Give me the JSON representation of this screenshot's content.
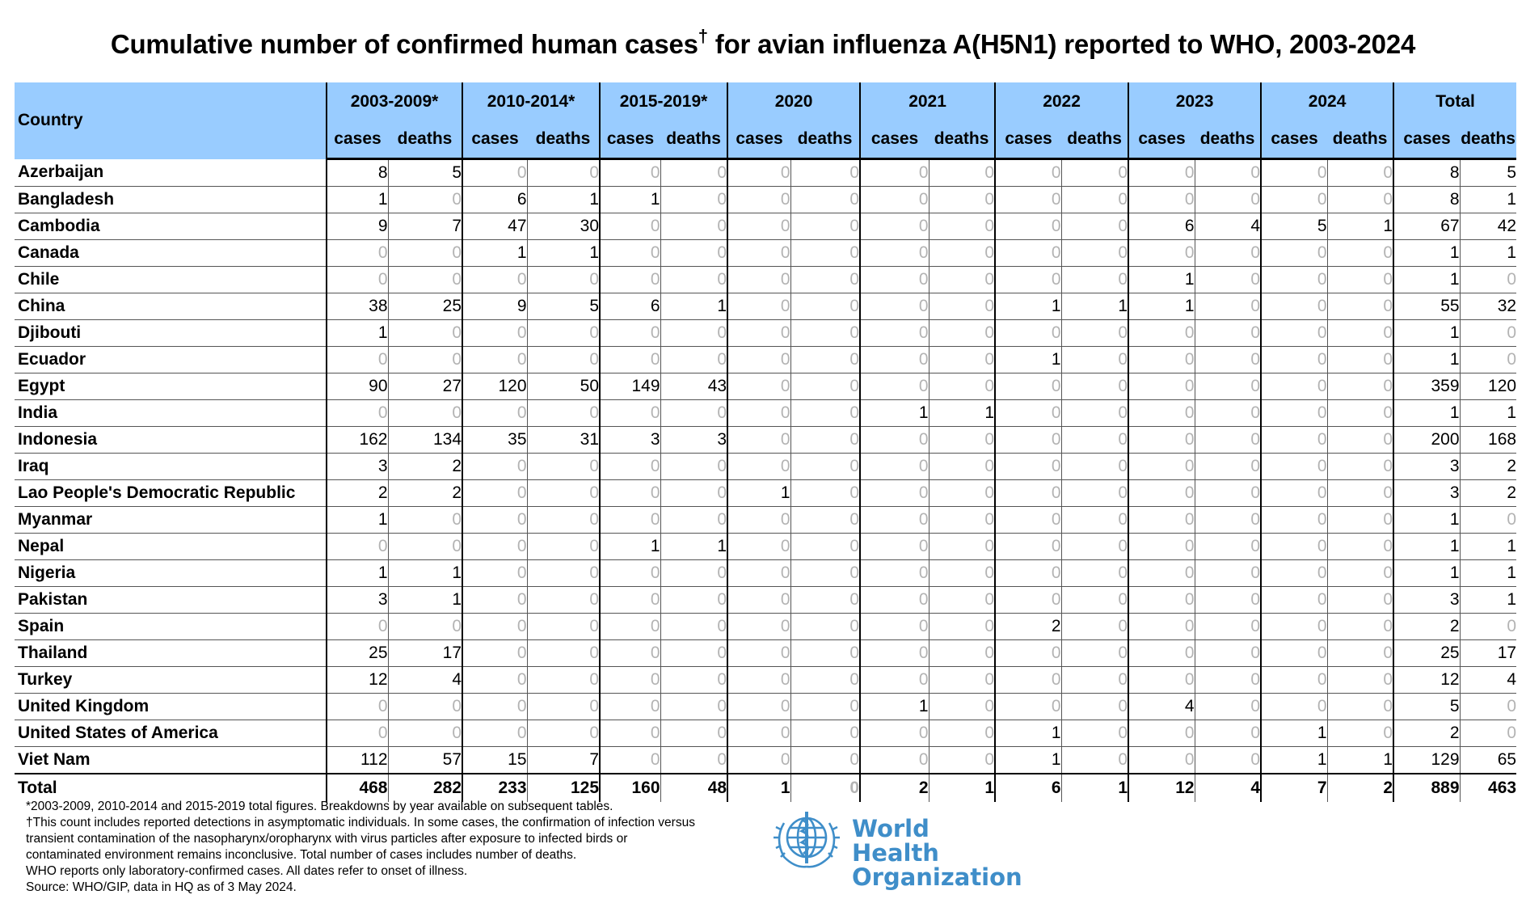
{
  "title": "Cumulative number of confirmed human cases",
  "title_mark": "†",
  "title_rest": " for avian influenza A(H5N1) reported to WHO, 2003-2024",
  "header": {
    "country": "Country",
    "periods": [
      "2003-2009*",
      "2010-2014*",
      "2015-2019*",
      "2020",
      "2021",
      "2022",
      "2023",
      "2024",
      "Total"
    ],
    "cases": "cases",
    "deaths": "deaths"
  },
  "rows": [
    {
      "country": "Azerbaijan",
      "values": [
        8,
        5,
        0,
        0,
        0,
        0,
        0,
        0,
        0,
        0,
        0,
        0,
        0,
        0,
        0,
        0,
        8,
        5
      ]
    },
    {
      "country": "Bangladesh",
      "values": [
        1,
        0,
        6,
        1,
        1,
        0,
        0,
        0,
        0,
        0,
        0,
        0,
        0,
        0,
        0,
        0,
        8,
        1
      ]
    },
    {
      "country": "Cambodia",
      "values": [
        9,
        7,
        47,
        30,
        0,
        0,
        0,
        0,
        0,
        0,
        0,
        0,
        6,
        4,
        5,
        1,
        67,
        42
      ]
    },
    {
      "country": "Canada",
      "values": [
        0,
        0,
        1,
        1,
        0,
        0,
        0,
        0,
        0,
        0,
        0,
        0,
        0,
        0,
        0,
        0,
        1,
        1
      ]
    },
    {
      "country": "Chile",
      "values": [
        0,
        0,
        0,
        0,
        0,
        0,
        0,
        0,
        0,
        0,
        0,
        0,
        1,
        0,
        0,
        0,
        1,
        0
      ]
    },
    {
      "country": "China",
      "values": [
        38,
        25,
        9,
        5,
        6,
        1,
        0,
        0,
        0,
        0,
        1,
        1,
        1,
        0,
        0,
        0,
        55,
        32
      ]
    },
    {
      "country": "Djibouti",
      "values": [
        1,
        0,
        0,
        0,
        0,
        0,
        0,
        0,
        0,
        0,
        0,
        0,
        0,
        0,
        0,
        0,
        1,
        0
      ]
    },
    {
      "country": "Ecuador",
      "values": [
        0,
        0,
        0,
        0,
        0,
        0,
        0,
        0,
        0,
        0,
        1,
        0,
        0,
        0,
        0,
        0,
        1,
        0
      ]
    },
    {
      "country": "Egypt",
      "values": [
        90,
        27,
        120,
        50,
        149,
        43,
        0,
        0,
        0,
        0,
        0,
        0,
        0,
        0,
        0,
        0,
        359,
        120
      ]
    },
    {
      "country": "India",
      "values": [
        0,
        0,
        0,
        0,
        0,
        0,
        0,
        0,
        1,
        1,
        0,
        0,
        0,
        0,
        0,
        0,
        1,
        1
      ]
    },
    {
      "country": "Indonesia",
      "values": [
        162,
        134,
        35,
        31,
        3,
        3,
        0,
        0,
        0,
        0,
        0,
        0,
        0,
        0,
        0,
        0,
        200,
        168
      ]
    },
    {
      "country": "Iraq",
      "values": [
        3,
        2,
        0,
        0,
        0,
        0,
        0,
        0,
        0,
        0,
        0,
        0,
        0,
        0,
        0,
        0,
        3,
        2
      ]
    },
    {
      "country": "Lao People's Democratic Republic",
      "values": [
        2,
        2,
        0,
        0,
        0,
        0,
        1,
        0,
        0,
        0,
        0,
        0,
        0,
        0,
        0,
        0,
        3,
        2
      ]
    },
    {
      "country": "Myanmar",
      "values": [
        1,
        0,
        0,
        0,
        0,
        0,
        0,
        0,
        0,
        0,
        0,
        0,
        0,
        0,
        0,
        0,
        1,
        0
      ]
    },
    {
      "country": "Nepal",
      "values": [
        0,
        0,
        0,
        0,
        1,
        1,
        0,
        0,
        0,
        0,
        0,
        0,
        0,
        0,
        0,
        0,
        1,
        1
      ]
    },
    {
      "country": "Nigeria",
      "values": [
        1,
        1,
        0,
        0,
        0,
        0,
        0,
        0,
        0,
        0,
        0,
        0,
        0,
        0,
        0,
        0,
        1,
        1
      ]
    },
    {
      "country": "Pakistan",
      "values": [
        3,
        1,
        0,
        0,
        0,
        0,
        0,
        0,
        0,
        0,
        0,
        0,
        0,
        0,
        0,
        0,
        3,
        1
      ]
    },
    {
      "country": "Spain",
      "values": [
        0,
        0,
        0,
        0,
        0,
        0,
        0,
        0,
        0,
        0,
        2,
        0,
        0,
        0,
        0,
        0,
        2,
        0
      ]
    },
    {
      "country": "Thailand",
      "values": [
        25,
        17,
        0,
        0,
        0,
        0,
        0,
        0,
        0,
        0,
        0,
        0,
        0,
        0,
        0,
        0,
        25,
        17
      ]
    },
    {
      "country": "Turkey",
      "values": [
        12,
        4,
        0,
        0,
        0,
        0,
        0,
        0,
        0,
        0,
        0,
        0,
        0,
        0,
        0,
        0,
        12,
        4
      ]
    },
    {
      "country": "United Kingdom",
      "values": [
        0,
        0,
        0,
        0,
        0,
        0,
        0,
        0,
        1,
        0,
        0,
        0,
        4,
        0,
        0,
        0,
        5,
        0
      ]
    },
    {
      "country": "United States of America",
      "values": [
        0,
        0,
        0,
        0,
        0,
        0,
        0,
        0,
        0,
        0,
        1,
        0,
        0,
        0,
        1,
        0,
        2,
        0
      ]
    },
    {
      "country": "Viet Nam",
      "values": [
        112,
        57,
        15,
        7,
        0,
        0,
        0,
        0,
        0,
        0,
        1,
        0,
        0,
        0,
        1,
        1,
        129,
        65
      ]
    }
  ],
  "total": {
    "country": "Total",
    "values": [
      468,
      282,
      233,
      125,
      160,
      48,
      1,
      0,
      2,
      1,
      6,
      1,
      12,
      4,
      7,
      2,
      889,
      463
    ]
  },
  "notes": [
    "*2003-2009, 2010-2014 and 2015-2019 total figures. Breakdowns by year available on subsequent tables.",
    "†This count includes reported detections in asymptomatic individuals. In some cases, the confirmation of infection versus transient contamination of the nasopharynx/oropharynx with virus particles after exposure to infected birds or contaminated environment remains inconclusive. Total number of cases includes number of deaths.",
    "WHO reports only laboratory-confirmed cases. All dates refer to onset of illness.",
    "Source: WHO/GIP, data in HQ as of 3 May 2024."
  ],
  "logo": {
    "line1": "World Health",
    "line2": "Organization",
    "color": "#3f8ec9"
  },
  "colors": {
    "header_bg": "#99ccff",
    "zero_text": "#b3b3b3"
  }
}
